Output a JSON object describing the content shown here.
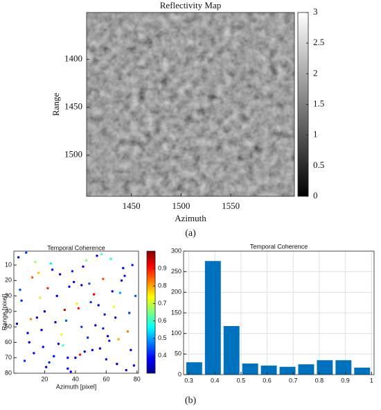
{
  "chart_data": [
    {
      "type": "heatmap",
      "title": "Reflectivity Map",
      "x_label": "Azimuth",
      "y_label": "Range",
      "xlim": [
        1405,
        1614
      ],
      "xticks": [
        1450,
        1500,
        1550
      ],
      "ylim": [
        1351,
        1543
      ],
      "yticks": [
        1400,
        1450,
        1500
      ],
      "y_reversed": true,
      "colormap": "gray",
      "clim": [
        0,
        3
      ],
      "cticks": [
        0,
        0.5,
        1,
        1.5,
        2,
        2.5,
        3
      ],
      "caption": "(a)"
    },
    {
      "type": "scatter",
      "title": "Temporal Coherence",
      "x_label": "Azimuth [pixel]",
      "y_label": "Range [pixel]",
      "xlim": [
        0,
        81
      ],
      "xticks": [
        20,
        40,
        60,
        80
      ],
      "ylim": [
        1,
        80
      ],
      "yticks": [
        10,
        20,
        30,
        40,
        50,
        60,
        70,
        80
      ],
      "y_reversed": true,
      "colormap": "jet",
      "clim": [
        0.3,
        1
      ],
      "cticks": [
        0.4,
        0.5,
        0.6,
        0.7,
        0.8,
        0.9
      ],
      "x": [
        3,
        7,
        12,
        15,
        19,
        24,
        28,
        31,
        35,
        38,
        42,
        46,
        49,
        53,
        57,
        60,
        64,
        68,
        71,
        75,
        78,
        5,
        10,
        14,
        18,
        22,
        26,
        30,
        34,
        37,
        41,
        45,
        48,
        52,
        56,
        59,
        63,
        67,
        70,
        74,
        2,
        8,
        13,
        17,
        21,
        25,
        29,
        33,
        36,
        40,
        44,
        47,
        51,
        55,
        58,
        62,
        66,
        69,
        73,
        77,
        4,
        9,
        16,
        20,
        23,
        27,
        32,
        39,
        43,
        50,
        54,
        61,
        65,
        72,
        76,
        79,
        11,
        35,
        44,
        58
      ],
      "y": [
        5,
        72,
        18,
        44,
        63,
        9,
        30,
        55,
        77,
        14,
        38,
        66,
        22,
        49,
        3,
        71,
        27,
        58,
        12,
        41,
        75,
        33,
        60,
        8,
        52,
        25,
        69,
        16,
        46,
        79,
        35,
        11,
        57,
        29,
        64,
        42,
        6,
        74,
        20,
        53,
        48,
        2,
        67,
        31,
        76,
        13,
        61,
        39,
        24,
        70,
        50,
        7,
        65,
        36,
        19,
        59,
        44,
        28,
        78,
        10,
        26,
        54,
        15,
        40,
        73,
        47,
        62,
        21,
        68,
        34,
        4,
        56,
        37,
        17,
        65,
        30,
        45,
        70,
        23,
        51
      ],
      "values": [
        0.38,
        0.42,
        0.85,
        0.36,
        0.4,
        0.55,
        0.37,
        0.72,
        0.39,
        0.41,
        0.9,
        0.36,
        0.44,
        0.38,
        0.62,
        0.4,
        0.37,
        0.8,
        0.39,
        0.43,
        0.36,
        0.41,
        0.38,
        0.67,
        0.37,
        0.88,
        0.4,
        0.36,
        0.45,
        0.39,
        0.75,
        0.38,
        0.42,
        0.92,
        0.37,
        0.41,
        0.58,
        0.36,
        0.4,
        0.83,
        0.37,
        0.43,
        0.39,
        0.7,
        0.36,
        0.41,
        0.38,
        0.95,
        0.4,
        0.37,
        0.42,
        0.65,
        0.39,
        0.36,
        0.86,
        0.41,
        0.38,
        0.5,
        0.37,
        0.4,
        0.44,
        0.38,
        0.78,
        0.36,
        0.41,
        0.39,
        0.6,
        0.37,
        0.9,
        0.42,
        0.38,
        0.36,
        0.73,
        0.4,
        0.37,
        0.45,
        0.82,
        0.39,
        0.36,
        0.41
      ]
    },
    {
      "type": "histogram",
      "title": "Temporal Coherence",
      "color": "#0072bd",
      "grid": true,
      "bins": [
        0.285,
        0.3565,
        0.428,
        0.4995,
        0.571,
        0.6425,
        0.714,
        0.7855,
        0.857,
        0.9285,
        1.0
      ],
      "values": [
        30,
        276,
        118,
        27,
        22,
        19,
        25,
        35,
        35,
        17
      ],
      "xlim": [
        0.28,
        1.01
      ],
      "xticks": [
        0.3,
        0.4,
        0.5,
        0.6,
        0.7,
        0.8,
        0.9,
        1
      ],
      "ylim": [
        0,
        300
      ],
      "yticks": [
        0,
        50,
        100,
        150,
        200,
        250,
        300
      ],
      "caption": "(b)"
    }
  ]
}
